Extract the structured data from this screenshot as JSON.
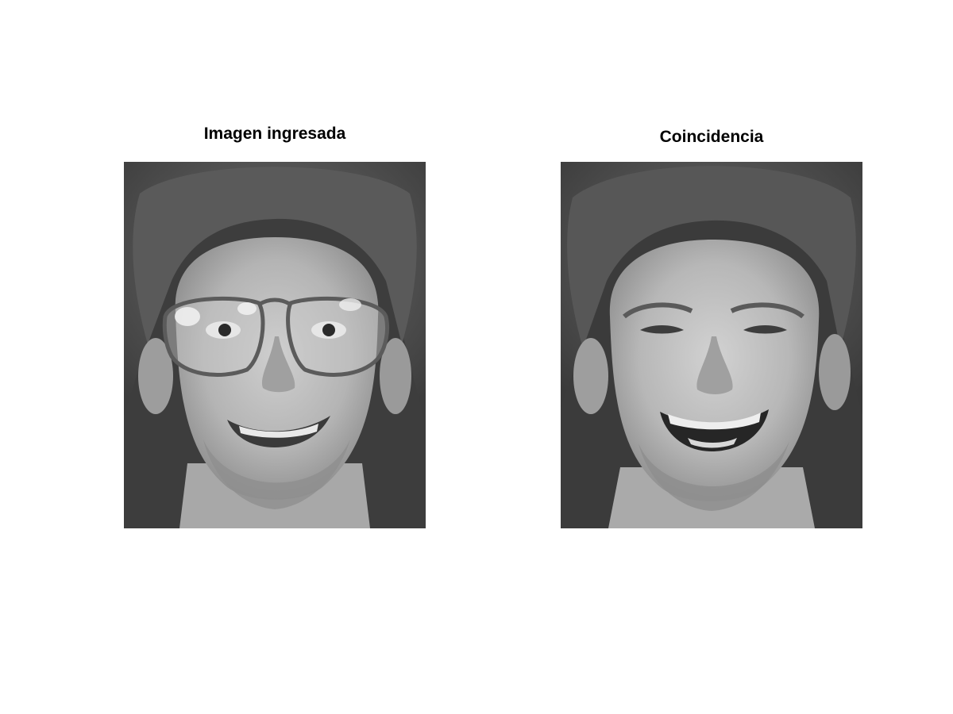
{
  "figure": {
    "panels": [
      {
        "title": "Imagen ingresada",
        "image": "grayscale-face-with-glasses"
      },
      {
        "title": "Coincidencia",
        "image": "grayscale-face-smiling"
      }
    ]
  }
}
